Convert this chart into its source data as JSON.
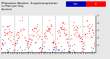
{
  "title": "Milwaukee Weather  Evapotranspiration\nvs Rain per Day\n(Inches)",
  "title_fontsize": 3.0,
  "bg_color": "#e8e8e8",
  "plot_bg": "#ffffff",
  "et_color": "#ff0000",
  "rain_color": "#0000bb",
  "legend_et_label": "ET",
  "legend_rain_label": "Rain",
  "ylim": [
    0.0,
    0.5
  ],
  "ytick_vals": [
    0.1,
    0.2,
    0.3,
    0.4,
    0.5
  ],
  "ytick_labels": [
    ".1",
    ".2",
    ".3",
    ".4",
    ".5"
  ],
  "num_points_per_year": 52,
  "num_years": 7,
  "vline_x": [
    52,
    104,
    156,
    208,
    260,
    312
  ],
  "xlim": [
    0,
    363
  ]
}
